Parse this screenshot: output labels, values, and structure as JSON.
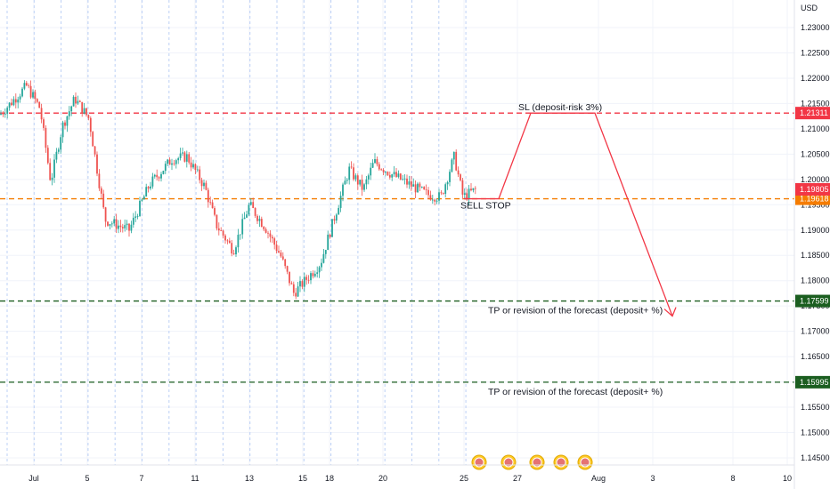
{
  "chart_data": {
    "type": "candlestick",
    "currency_label": "USD",
    "y_ticks": [
      "1.23000",
      "1.22500",
      "1.22000",
      "1.21500",
      "1.21000",
      "1.20500",
      "1.20000",
      "1.19500",
      "1.19000",
      "1.18500",
      "1.18000",
      "1.17500",
      "1.17000",
      "1.16500",
      "1.16000",
      "1.15500",
      "1.15000",
      "1.14500"
    ],
    "x_ticks": [
      "Jul",
      "5",
      "7",
      "11",
      "13",
      "15",
      "18",
      "20",
      "25",
      "27",
      "Aug",
      "3",
      "8",
      "10"
    ],
    "ylim": [
      1.14353,
      1.23244
    ],
    "levels": [
      {
        "name": "SL",
        "value": 1.21311,
        "badge": "1.21311",
        "color": "#f23645"
      },
      {
        "name": "entry",
        "value": 1.19618,
        "badge": "1.19618",
        "color": "#f57c00"
      },
      {
        "name": "TP1",
        "value": 1.17599,
        "badge": "1.17599",
        "color": "#1b5e20"
      },
      {
        "name": "TP2",
        "value": 1.15995,
        "badge": "1.15995",
        "color": "#1b5e20"
      }
    ],
    "current_price": {
      "value": 1.19805,
      "badge": "1.19805",
      "color": "#f23645"
    },
    "annotations": {
      "sl": "SL (deposit-risk 3%)",
      "sell_stop": "SELL STOP",
      "tp1": "TP or revision of the forecast (deposit+ %)",
      "tp2": "TP or revision of the forecast (deposit+ %)"
    },
    "forecast_path": [
      {
        "x": "25",
        "y": 1.19618
      },
      {
        "x": "26",
        "y": 1.19618
      },
      {
        "x": "27",
        "y": 1.21311
      },
      {
        "x": "28",
        "y": 1.21311
      },
      {
        "x": "30",
        "y": 1.173
      }
    ],
    "colors": {
      "up": "#26a69a",
      "down": "#ef5350",
      "forecast": "#f23645"
    }
  }
}
